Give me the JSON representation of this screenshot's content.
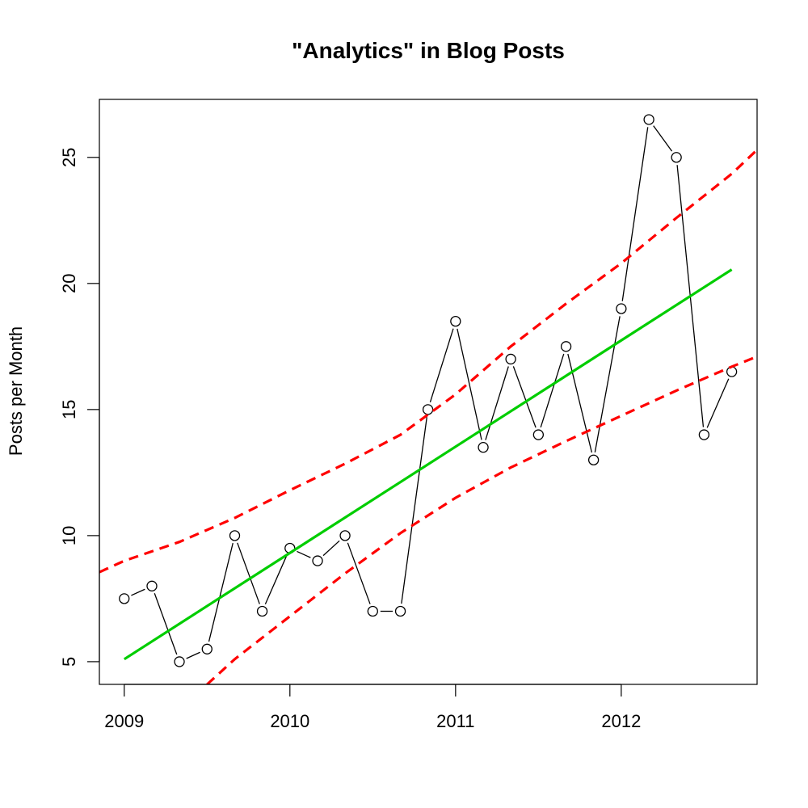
{
  "chart_data": {
    "type": "line",
    "title": "\"Analytics\" in Blog Posts",
    "xlabel": "",
    "ylabel": "Posts per Month",
    "xlim": [
      2008.85,
      2012.82
    ],
    "ylim": [
      4.1,
      27.3
    ],
    "x_ticks": [
      {
        "value": 2009,
        "label": "2009"
      },
      {
        "value": 2010,
        "label": "2010"
      },
      {
        "value": 2011,
        "label": "2011"
      },
      {
        "value": 2012,
        "label": "2012"
      }
    ],
    "y_ticks": [
      {
        "value": 5,
        "label": "5"
      },
      {
        "value": 10,
        "label": "10"
      },
      {
        "value": 15,
        "label": "15"
      },
      {
        "value": 20,
        "label": "20"
      },
      {
        "value": 25,
        "label": "25"
      }
    ],
    "grid": false,
    "legend": "none",
    "series": [
      {
        "style": "points-and-lines",
        "color": "#000000",
        "x": [
          2009.0,
          2009.167,
          2009.333,
          2009.5,
          2009.667,
          2009.833,
          2010.0,
          2010.167,
          2010.333,
          2010.5,
          2010.667,
          2010.833,
          2011.0,
          2011.167,
          2011.333,
          2011.5,
          2011.667,
          2011.833,
          2012.0,
          2012.167,
          2012.333,
          2012.5,
          2012.667
        ],
        "values": [
          7.5,
          8.0,
          5.0,
          5.5,
          10.0,
          7.0,
          9.5,
          9.0,
          10.0,
          7.0,
          7.0,
          15.0,
          18.5,
          13.5,
          17.0,
          14.0,
          17.5,
          13.0,
          19.0,
          26.5,
          25.0,
          14.0,
          16.5
        ]
      },
      {
        "style": "solid-line",
        "color": "#00cd00",
        "x": [
          2009.0,
          2012.667
        ],
        "values": [
          5.1,
          20.55
        ]
      },
      {
        "style": "dashed-line",
        "color": "#ff0000",
        "x": [
          2008.85,
          2009.0,
          2009.333,
          2009.667,
          2010.0,
          2010.333,
          2010.667,
          2011.0,
          2011.333,
          2011.667,
          2012.0,
          2012.333,
          2012.667,
          2012.82
        ],
        "values": [
          8.55,
          9.0,
          9.75,
          10.7,
          11.8,
          12.85,
          14.0,
          15.6,
          17.5,
          19.2,
          20.8,
          22.6,
          24.35,
          25.3
        ]
      },
      {
        "style": "dashed-line",
        "color": "#ff0000",
        "x": [
          2009.5,
          2009.667,
          2010.0,
          2010.333,
          2010.667,
          2011.0,
          2011.333,
          2011.667,
          2012.0,
          2012.333,
          2012.667,
          2012.82
        ],
        "values": [
          4.1,
          5.1,
          6.8,
          8.5,
          10.1,
          11.5,
          12.7,
          13.75,
          14.75,
          15.75,
          16.7,
          17.1
        ]
      }
    ]
  }
}
